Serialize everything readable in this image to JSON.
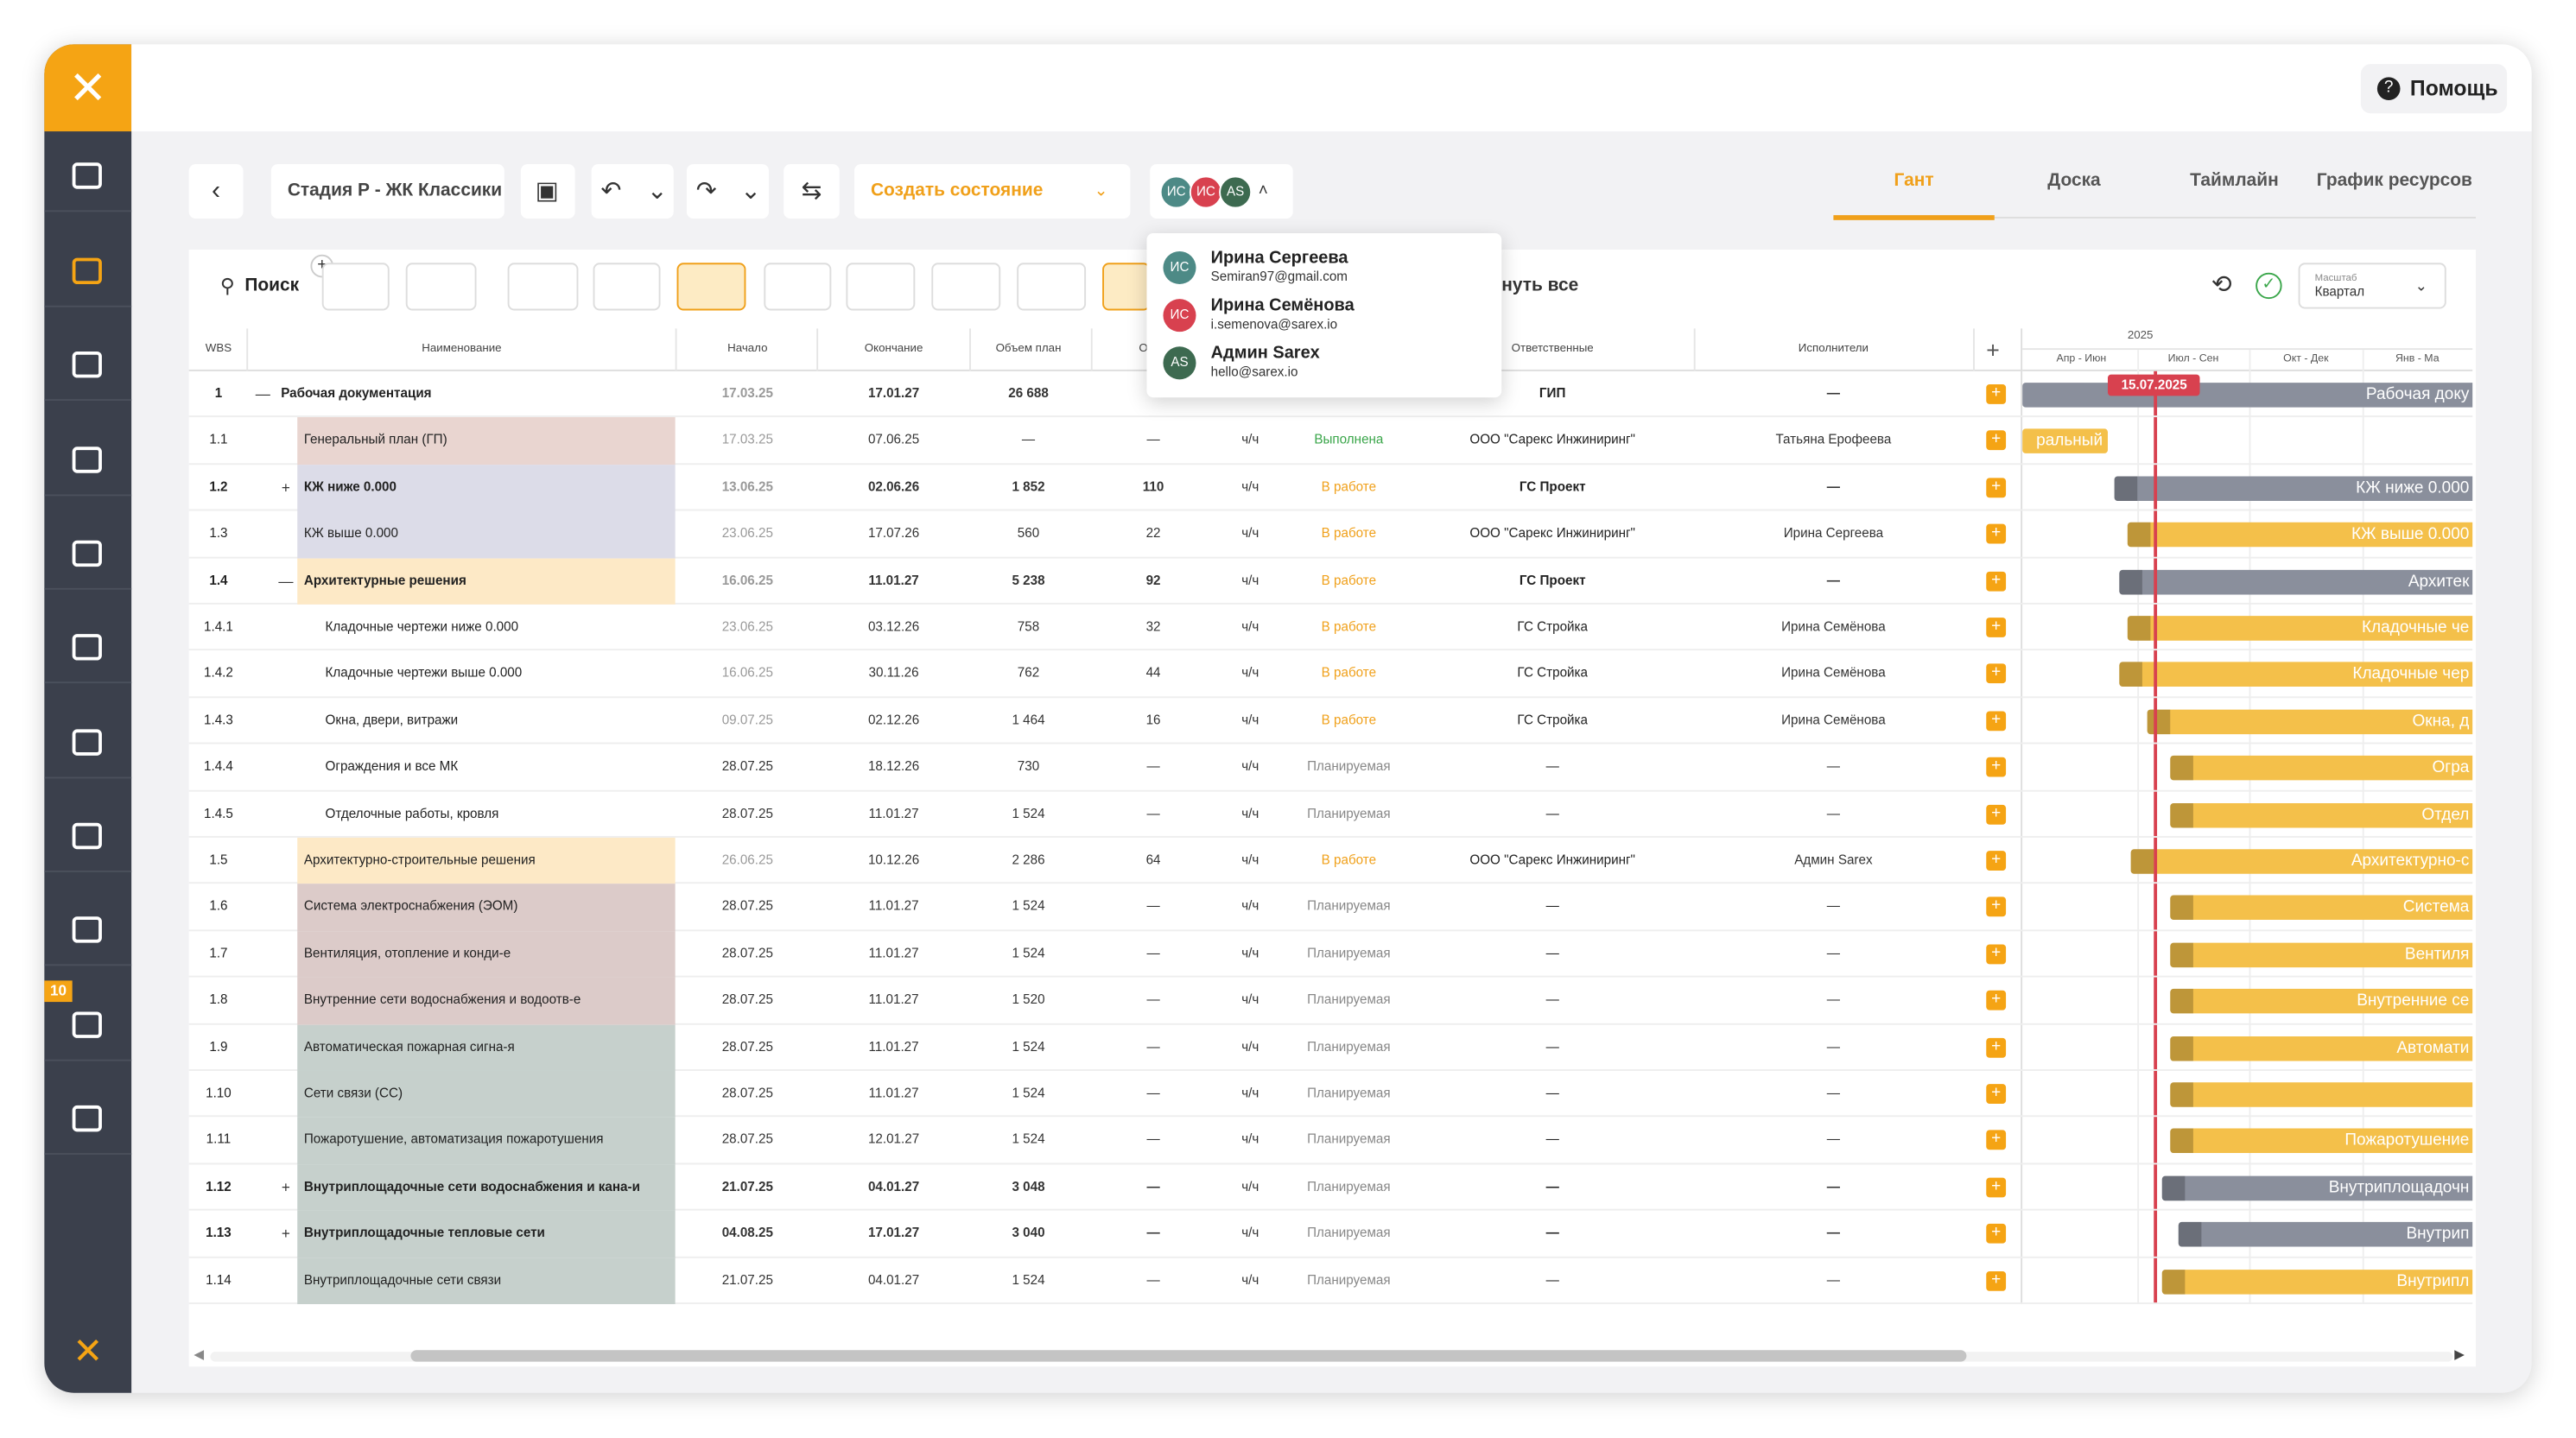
{
  "header": {
    "help": "Помощь"
  },
  "sidebar": {
    "badge": "10"
  },
  "toolbar": {
    "project": "Стадия Р - ЖК Классики",
    "create_state": "Создать состояние",
    "tabs": [
      "Гант",
      "Доска",
      "Таймлайн",
      "График ресурсов"
    ]
  },
  "users": [
    {
      "initials": "ИС",
      "name": "Ирина Сергеева",
      "email": "Semiran97@gmail.com",
      "color": "#4d8a86"
    },
    {
      "initials": "ИС",
      "name": "Ирина Семёнова",
      "email": "i.semenova@sarex.io",
      "color": "#d8414f"
    },
    {
      "initials": "AS",
      "name": "Админ Sarex",
      "email": "hello@sarex.io",
      "color": "#3d6a50"
    }
  ],
  "filters": {
    "search": "Поиск",
    "expand": "нуть все",
    "scale_label": "Масштаб",
    "scale": "Квартал"
  },
  "table": {
    "columns": [
      "WBS",
      "Наименование",
      "Начало",
      "Окончание",
      "Объем план",
      "Объе",
      "Ответственные",
      "Исполнители"
    ],
    "rows": [
      {
        "wbs": "1",
        "toggle": "—",
        "name": "Рабочая документация",
        "start": "17.03.25",
        "end": "17.01.27",
        "plan": "26 688",
        "fact": null,
        "unit": null,
        "status": null,
        "status_color": null,
        "responsible": "ГИП",
        "executor": "—",
        "bar": "Рабочая доку",
        "bold": true,
        "bg": null,
        "bar_color": "#8a8f9c"
      },
      {
        "wbs": "1.1",
        "toggle": null,
        "name": "Генеральный план (ГП)",
        "start": "17.03.25",
        "end": "07.06.25",
        "plan": "—",
        "fact": "—",
        "unit": "ч/ч",
        "status": "Выполнена",
        "status_color": "#3aa64a",
        "responsible": "ООО \"Сарекс Инжиниринг\"",
        "executor": "Татьяна Ерофеева",
        "bar": "ральный",
        "bold": false,
        "bg": "#e9d5d0",
        "bar_color": "#f4c04a"
      },
      {
        "wbs": "1.2",
        "toggle": "+",
        "name": "КЖ ниже 0.000",
        "start": "13.06.25",
        "end": "02.06.26",
        "plan": "1 852",
        "fact": "110",
        "unit": "ч/ч",
        "status": "В работе",
        "status_color": "#f0a01a",
        "responsible": "ГС Проект",
        "executor": "—",
        "bar": "КЖ ниже 0.000",
        "bold": true,
        "bg": "#dcdce8",
        "bar_color": "#8a8f9c"
      },
      {
        "wbs": "1.3",
        "toggle": null,
        "name": "КЖ выше 0.000",
        "start": "23.06.25",
        "end": "17.07.26",
        "plan": "560",
        "fact": "22",
        "unit": "ч/ч",
        "status": "В работе",
        "status_color": "#f0a01a",
        "responsible": "ООО \"Сарекс Инжиниринг\"",
        "executor": "Ирина Сергеева",
        "bar": "КЖ выше 0.000",
        "bold": false,
        "bg": "#dcdce8",
        "bar_color": "#f4c04a"
      },
      {
        "wbs": "1.4",
        "toggle": "—",
        "name": "Архитектурные решения",
        "start": "16.06.25",
        "end": "11.01.27",
        "plan": "5 238",
        "fact": "92",
        "unit": "ч/ч",
        "status": "В работе",
        "status_color": "#f0a01a",
        "responsible": "ГС Проект",
        "executor": "—",
        "bar": "Архитек",
        "bold": true,
        "bg": "#fde9c6",
        "bar_color": "#8a8f9c"
      },
      {
        "wbs": "1.4.1",
        "toggle": null,
        "name": "Кладочные чертежи ниже 0.000",
        "start": "23.06.25",
        "end": "03.12.26",
        "plan": "758",
        "fact": "32",
        "unit": "ч/ч",
        "status": "В работе",
        "status_color": "#f0a01a",
        "responsible": "ГС Стройка",
        "executor": "Ирина Семёнова",
        "bar": "Кладочные че",
        "bold": false,
        "bg": null,
        "bar_color": "#f4c04a"
      },
      {
        "wbs": "1.4.2",
        "toggle": null,
        "name": "Кладочные чертежи выше 0.000",
        "start": "16.06.25",
        "end": "30.11.26",
        "plan": "762",
        "fact": "44",
        "unit": "ч/ч",
        "status": "В работе",
        "status_color": "#f0a01a",
        "responsible": "ГС Стройка",
        "executor": "Ирина Семёнова",
        "bar": "Кладочные чер",
        "bold": false,
        "bg": null,
        "bar_color": "#f4c04a"
      },
      {
        "wbs": "1.4.3",
        "toggle": null,
        "name": "Окна, двери, витражи",
        "start": "09.07.25",
        "end": "02.12.26",
        "plan": "1 464",
        "fact": "16",
        "unit": "ч/ч",
        "status": "В работе",
        "status_color": "#f0a01a",
        "responsible": "ГС Стройка",
        "executor": "Ирина Семёнова",
        "bar": "Окна, д",
        "bold": false,
        "bg": null,
        "bar_color": "#f4c04a"
      },
      {
        "wbs": "1.4.4",
        "toggle": null,
        "name": "Ограждения и все МК",
        "start": "28.07.25",
        "end": "18.12.26",
        "plan": "730",
        "fact": "—",
        "unit": "ч/ч",
        "status": "Планируемая",
        "status_color": "#888888",
        "responsible": "—",
        "executor": "—",
        "bar": "Огра",
        "bold": false,
        "bg": null,
        "bar_color": "#f4c04a"
      },
      {
        "wbs": "1.4.5",
        "toggle": null,
        "name": "Отделочные работы, кровля",
        "start": "28.07.25",
        "end": "11.01.27",
        "plan": "1 524",
        "fact": "—",
        "unit": "ч/ч",
        "status": "Планируемая",
        "status_color": "#888888",
        "responsible": "—",
        "executor": "—",
        "bar": "Отдел",
        "bold": false,
        "bg": null,
        "bar_color": "#f4c04a"
      },
      {
        "wbs": "1.5",
        "toggle": null,
        "name": "Архитектурно-строительные решения",
        "start": "26.06.25",
        "end": "10.12.26",
        "plan": "2 286",
        "fact": "64",
        "unit": "ч/ч",
        "status": "В работе",
        "status_color": "#f0a01a",
        "responsible": "ООО \"Сарекс Инжиниринг\"",
        "executor": "Админ Sarex",
        "bar": "Архитектурно-с",
        "bold": false,
        "bg": "#fde9c6",
        "bar_color": "#f4c04a"
      },
      {
        "wbs": "1.6",
        "toggle": null,
        "name": "Система электроснабжения (ЭОМ)",
        "start": "28.07.25",
        "end": "11.01.27",
        "plan": "1 524",
        "fact": "—",
        "unit": "ч/ч",
        "status": "Планируемая",
        "status_color": "#888888",
        "responsible": "—",
        "executor": "—",
        "bar": "Система",
        "bold": false,
        "bg": "#dccbc9",
        "bar_color": "#f4c04a"
      },
      {
        "wbs": "1.7",
        "toggle": null,
        "name": "Вентиляция, отопление и конди-е",
        "start": "28.07.25",
        "end": "11.01.27",
        "plan": "1 524",
        "fact": "—",
        "unit": "ч/ч",
        "status": "Планируемая",
        "status_color": "#888888",
        "responsible": "—",
        "executor": "—",
        "bar": "Вентиля",
        "bold": false,
        "bg": "#dccbc9",
        "bar_color": "#f4c04a"
      },
      {
        "wbs": "1.8",
        "toggle": null,
        "name": "Внутренние сети водоснабжения и водоотв-е",
        "start": "28.07.25",
        "end": "11.01.27",
        "plan": "1 520",
        "fact": "—",
        "unit": "ч/ч",
        "status": "Планируемая",
        "status_color": "#888888",
        "responsible": "—",
        "executor": "—",
        "bar": "Внутренние се",
        "bold": false,
        "bg": "#dccbc9",
        "bar_color": "#f4c04a"
      },
      {
        "wbs": "1.9",
        "toggle": null,
        "name": "Автоматическая пожарная сигна-я",
        "start": "28.07.25",
        "end": "11.01.27",
        "plan": "1 524",
        "fact": "—",
        "unit": "ч/ч",
        "status": "Планируемая",
        "status_color": "#888888",
        "responsible": "—",
        "executor": "—",
        "bar": "Автомати",
        "bold": false,
        "bg": "#c6d0cc",
        "bar_color": "#f4c04a"
      },
      {
        "wbs": "1.10",
        "toggle": null,
        "name": "Сети связи (СС)",
        "start": "28.07.25",
        "end": "11.01.27",
        "plan": "1 524",
        "fact": "—",
        "unit": "ч/ч",
        "status": "Планируемая",
        "status_color": "#888888",
        "responsible": "—",
        "executor": "—",
        "bar": null,
        "bold": false,
        "bg": "#c6d0cc",
        "bar_color": "#f4c04a"
      },
      {
        "wbs": "1.11",
        "toggle": null,
        "name": "Пожаротушение, автоматизация пожаротушения",
        "start": "28.07.25",
        "end": "12.01.27",
        "plan": "1 524",
        "fact": "—",
        "unit": "ч/ч",
        "status": "Планируемая",
        "status_color": "#888888",
        "responsible": "—",
        "executor": "—",
        "bar": "Пожаротушение",
        "bold": false,
        "bg": "#c6d0cc",
        "bar_color": "#f4c04a"
      },
      {
        "wbs": "1.12",
        "toggle": "+",
        "name": "Внутриплощадочные сети водоснабжения и кана-и",
        "start": "21.07.25",
        "end": "04.01.27",
        "plan": "3 048",
        "fact": "—",
        "unit": "ч/ч",
        "status": "Планируемая",
        "status_color": "#888888",
        "responsible": "—",
        "executor": "—",
        "bar": "Внутриплощадочн",
        "bold": true,
        "bg": "#c6d0cc",
        "bar_color": "#8a8f9c"
      },
      {
        "wbs": "1.13",
        "toggle": "+",
        "name": "Внутриплощадочные тепловые сети",
        "start": "04.08.25",
        "end": "17.01.27",
        "plan": "3 040",
        "fact": "—",
        "unit": "ч/ч",
        "status": "Планируемая",
        "status_color": "#888888",
        "responsible": "—",
        "executor": "—",
        "bar": "Внутрип",
        "bold": true,
        "bg": "#c6d0cc",
        "bar_color": "#8a8f9c"
      },
      {
        "wbs": "1.14",
        "toggle": null,
        "name": "Внутриплощадочные сети связи",
        "start": "21.07.25",
        "end": "04.01.27",
        "plan": "1 524",
        "fact": "—",
        "unit": "ч/ч",
        "status": "Планируемая",
        "status_color": "#888888",
        "responsible": "—",
        "executor": "—",
        "bar": "Внутрипл",
        "bold": false,
        "bg": "#c6d0cc",
        "bar_color": "#f4c04a"
      }
    ]
  },
  "gantt": {
    "year": "2025",
    "periods": [
      "Апр - Июн",
      "Июл - Сен",
      "Окт - Дек",
      "Янв - Ма"
    ],
    "today": "15.07.2025"
  }
}
